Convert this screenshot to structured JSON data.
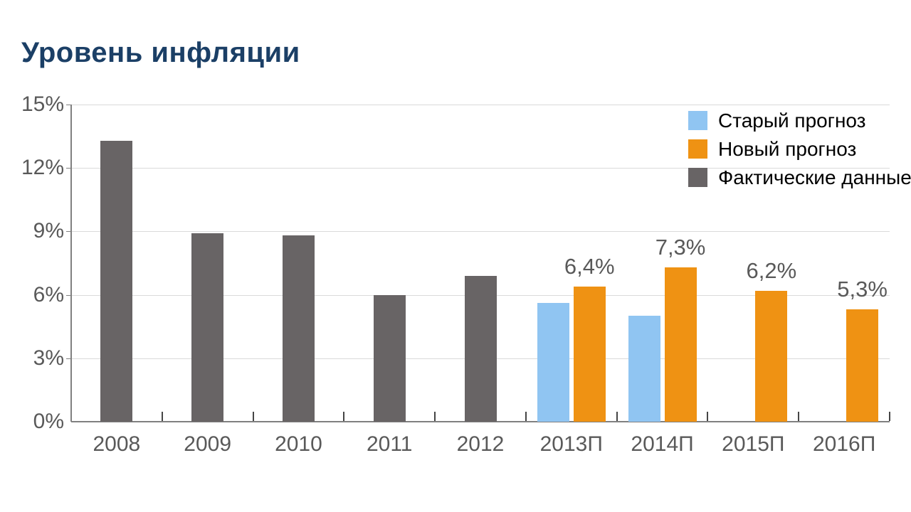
{
  "page": {
    "background": "#ffffff"
  },
  "colors": {
    "title": "#1B3F66",
    "axis_text": "#595959",
    "value_label_text": "#595959",
    "legend_text": "#000000",
    "gridline": "#DADADA",
    "axis_line": "#808080",
    "x_tick": "#454545",
    "old_forecast": "#90C5F2",
    "new_forecast": "#EF9213",
    "actual": "#686465"
  },
  "legend": {
    "items": [
      {
        "label": "Старый прогноз",
        "series": "old_forecast"
      },
      {
        "label": "Новый прогноз",
        "series": "new_forecast"
      },
      {
        "label": "Фактические данные",
        "series": "actual"
      }
    ]
  },
  "chart_data": {
    "type": "bar",
    "title": "Уровень инфляции",
    "categories": [
      "2008",
      "2009",
      "2010",
      "2011",
      "2012",
      "2013П",
      "2014П",
      "2015П",
      "2016П"
    ],
    "series": [
      {
        "name": "Старый прогноз",
        "key": "old_forecast",
        "values": [
          null,
          null,
          null,
          null,
          null,
          5.6,
          5.0,
          null,
          null
        ]
      },
      {
        "name": "Новый прогноз",
        "key": "new_forecast",
        "values": [
          null,
          null,
          null,
          null,
          null,
          6.4,
          7.3,
          6.2,
          5.3
        ],
        "point_labels": [
          null,
          null,
          null,
          null,
          null,
          "6,4%",
          "7,3%",
          "6,2%",
          "5,3%"
        ]
      },
      {
        "name": "Фактические данные",
        "key": "actual",
        "values": [
          13.3,
          8.9,
          8.8,
          6.0,
          6.9,
          null,
          null,
          null,
          null
        ]
      }
    ],
    "y_axis": {
      "tick_labels": [
        "0%",
        "3%",
        "6%",
        "9%",
        "12%",
        "15%"
      ],
      "min": 0,
      "max": 15,
      "step": 3,
      "unit": "%"
    },
    "x_axis": {
      "label": ""
    },
    "grid": true,
    "legend_position": "top-right"
  }
}
